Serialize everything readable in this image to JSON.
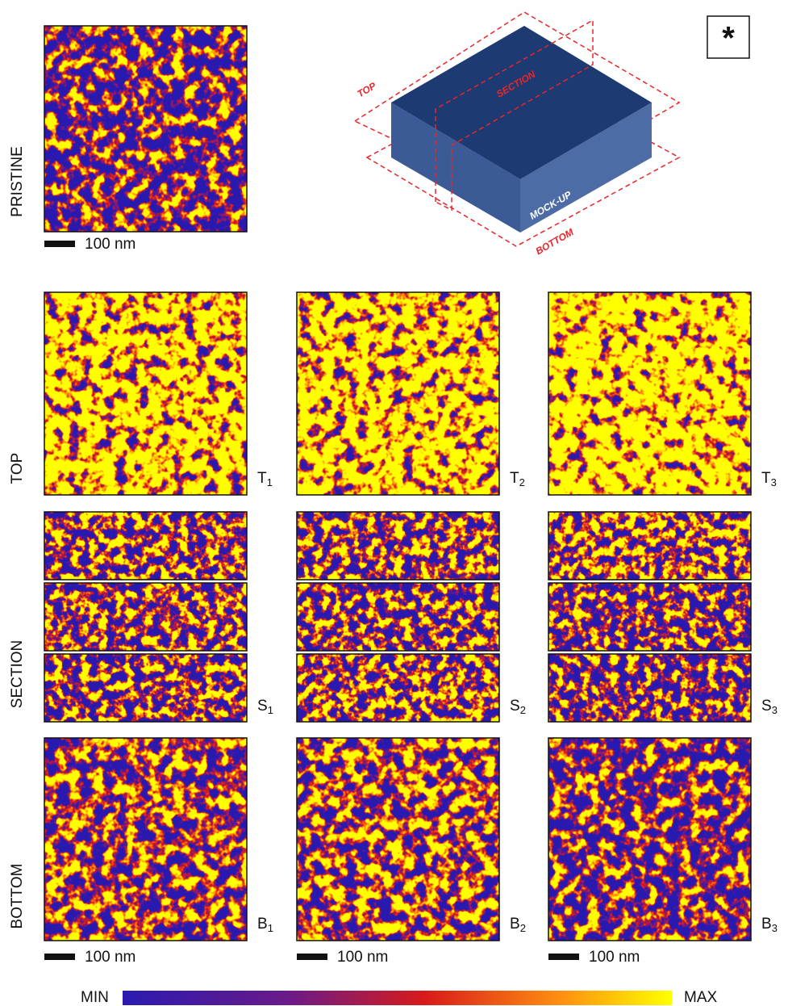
{
  "figure": {
    "corner_mark": "*",
    "pristine": {
      "row_label": "PRISTINE",
      "scale_bar": "100 nm"
    },
    "diagram": {
      "top": "TOP",
      "section": "SECTION",
      "bottom": "BOTTOM",
      "sample": "MOCK-UP"
    },
    "rows": [
      {
        "label": "TOP"
      },
      {
        "label": "SECTION"
      },
      {
        "label": "BOTTOM"
      }
    ],
    "panels": {
      "top": [
        {
          "letter": "T",
          "sub": "1"
        },
        {
          "letter": "T",
          "sub": "2"
        },
        {
          "letter": "T",
          "sub": "3"
        }
      ],
      "section": [
        {
          "letter": "S",
          "sub": "1"
        },
        {
          "letter": "S",
          "sub": "2"
        },
        {
          "letter": "S",
          "sub": "3"
        }
      ],
      "bottom": [
        {
          "letter": "B",
          "sub": "1"
        },
        {
          "letter": "B",
          "sub": "2"
        },
        {
          "letter": "B",
          "sub": "3"
        }
      ]
    },
    "scale_bars": [
      "100 nm",
      "100 nm",
      "100 nm"
    ],
    "colorbar": {
      "min": "MIN",
      "max": "MAX"
    }
  }
}
